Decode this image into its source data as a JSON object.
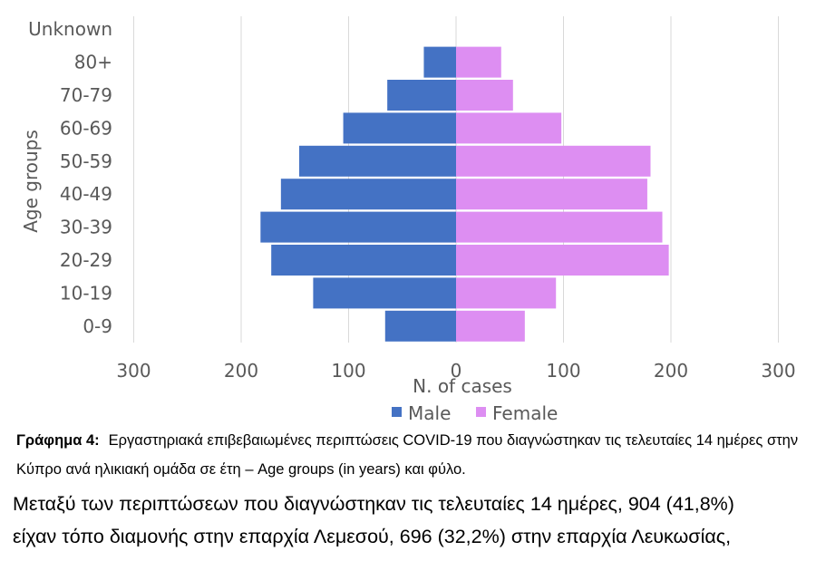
{
  "chart_data": {
    "type": "bar",
    "orientation": "horizontal-population-pyramid",
    "categories": [
      "0-9",
      "10-19",
      "20-29",
      "30-39",
      "40-49",
      "50-59",
      "60-69",
      "70-79",
      "80+",
      "Unknown"
    ],
    "series": [
      {
        "name": "Male",
        "color": "#4472C4",
        "values": [
          66,
          133,
          172,
          182,
          163,
          146,
          105,
          64,
          30,
          0
        ]
      },
      {
        "name": "Female",
        "color": "#DD8EF2",
        "values": [
          64,
          93,
          198,
          192,
          178,
          181,
          98,
          53,
          42,
          0
        ]
      }
    ],
    "xlabel": "N. of cases",
    "ylabel": "Age groups",
    "xticks": [
      "300",
      "200",
      "100",
      "0",
      "100",
      "200",
      "300"
    ],
    "xlim": [
      -300,
      300
    ],
    "grid": "vertical",
    "legend_position": "bottom"
  },
  "caption": {
    "label": "Γράφημα 4:",
    "text": "Εργαστηριακά επιβεβαιωμένες περιπτώσεις COVID-19 που διαγνώστηκαν τις τελευταίες 14 ημέρες στην Κύπρο ανά ηλικιακή ομάδα σε έτη – Age groups (in years) και φύλο."
  },
  "paragraph": {
    "line1": "Μεταξύ των περιπτώσεων που διαγνώστηκαν τις τελευταίες 14 ημέρες, 904 (41,8%)",
    "line2": "είχαν τόπο διαμονής στην επαρχία Λεμεσού, 696 (32,2%) στην επαρχία Λευκωσίας,"
  }
}
